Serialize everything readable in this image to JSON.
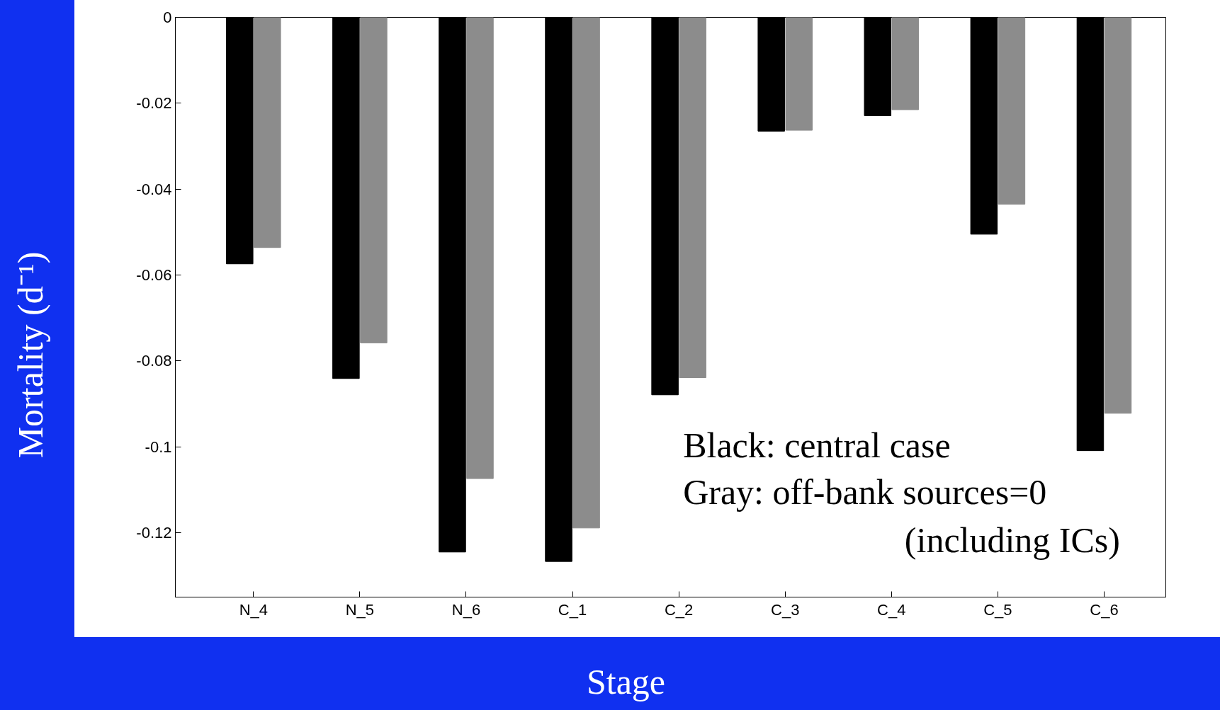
{
  "chart_data": {
    "type": "bar",
    "xlabel": "Stage",
    "ylabel": "Mortality (d⁻¹)",
    "categories": [
      "N_4",
      "N_5",
      "N_6",
      "C_1",
      "C_2",
      "C_3",
      "C_4",
      "C_5",
      "C_6"
    ],
    "series": [
      {
        "color": "#000000",
        "values": [
          -0.0574,
          -0.0841,
          -0.1245,
          -0.1267,
          -0.0879,
          -0.0265,
          -0.0229,
          -0.0505,
          -0.1009
        ]
      },
      {
        "color": "#8c8c8c",
        "values": [
          -0.0536,
          -0.0758,
          -0.1074,
          -0.1189,
          -0.0839,
          -0.0263,
          -0.0215,
          -0.0435,
          -0.0922
        ]
      }
    ],
    "ylim": [
      -0.135,
      0
    ],
    "yticks": [
      -0.12,
      -0.1,
      -0.08,
      -0.06,
      -0.04,
      -0.02,
      0
    ],
    "grid": false,
    "annotations": [
      "Black: central case",
      "Gray: off-bank sources=0",
      "(including ICs)"
    ]
  }
}
